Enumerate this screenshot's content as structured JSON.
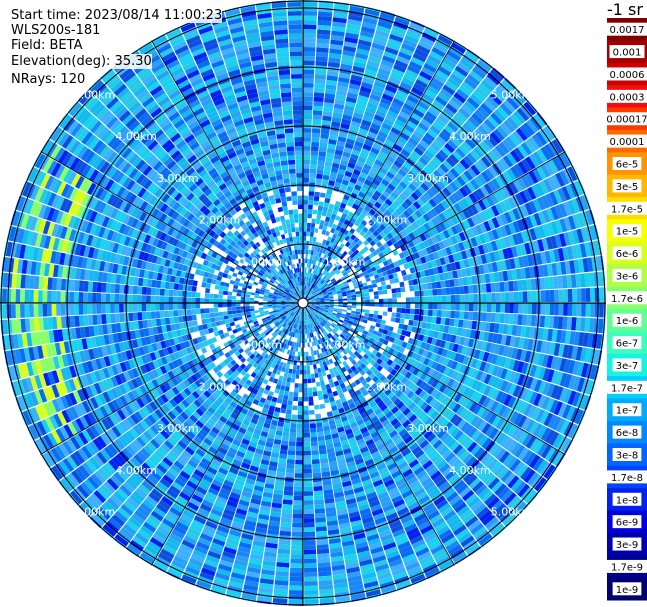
{
  "header": {
    "start_time": "Start time: 2023/08/14 11:00:23",
    "instrument": "WLS200s-181",
    "field": "Field: BETA",
    "elevation": "Elevation(deg): 35.30",
    "nrays": "NRays: 120"
  },
  "colorbar": {
    "unit": "-1 sr",
    "labels": [
      "0.0017",
      "0.001",
      "0.0006",
      "0.0003",
      "0.00017",
      "0.0001",
      "6e-5",
      "3e-5",
      "1.7e-5",
      "1e-5",
      "6e-6",
      "3e-6",
      "1.7e-6",
      "1e-6",
      "6e-7",
      "3e-7",
      "1.7e-7",
      "1e-7",
      "6e-8",
      "3e-8",
      "1.7e-8",
      "1e-8",
      "6e-9",
      "3e-9",
      "1.7e-9",
      "1e-9"
    ],
    "colors": [
      "#7f0000",
      "#a50000",
      "#cf0000",
      "#f01010",
      "#ff3a00",
      "#ff6a00",
      "#ff9400",
      "#ffb800",
      "#ffde00",
      "#f7ff00",
      "#d8ff1f",
      "#b0ff46",
      "#8aff6c",
      "#62ff94",
      "#3cffba",
      "#18f2e2",
      "#00d0ff",
      "#00aaff",
      "#0088ff",
      "#0066ff",
      "#0044ff",
      "#0022f0",
      "#0000d8",
      "#0000b0",
      "#000090",
      "#000070"
    ]
  },
  "chart_data": {
    "type": "heatmap",
    "projection": "polar (PPI)",
    "field": "BETA",
    "nrays": 120,
    "max_range_km": 5.0,
    "range_rings_km": [
      1,
      2,
      3,
      4,
      5
    ],
    "range_ring_labels": [
      "1.00km",
      "2.00km",
      "3.00km",
      "4.00km",
      "5.00km"
    ],
    "color_scale": "log",
    "value_range": [
      1e-09,
      0.0017
    ],
    "features": [
      {
        "description": "elevated backscatter arc (west)",
        "range_km": [
          4.0,
          4.9
        ],
        "azimuth_deg": [
          240,
          300
        ],
        "value": 1e-06
      }
    ]
  }
}
